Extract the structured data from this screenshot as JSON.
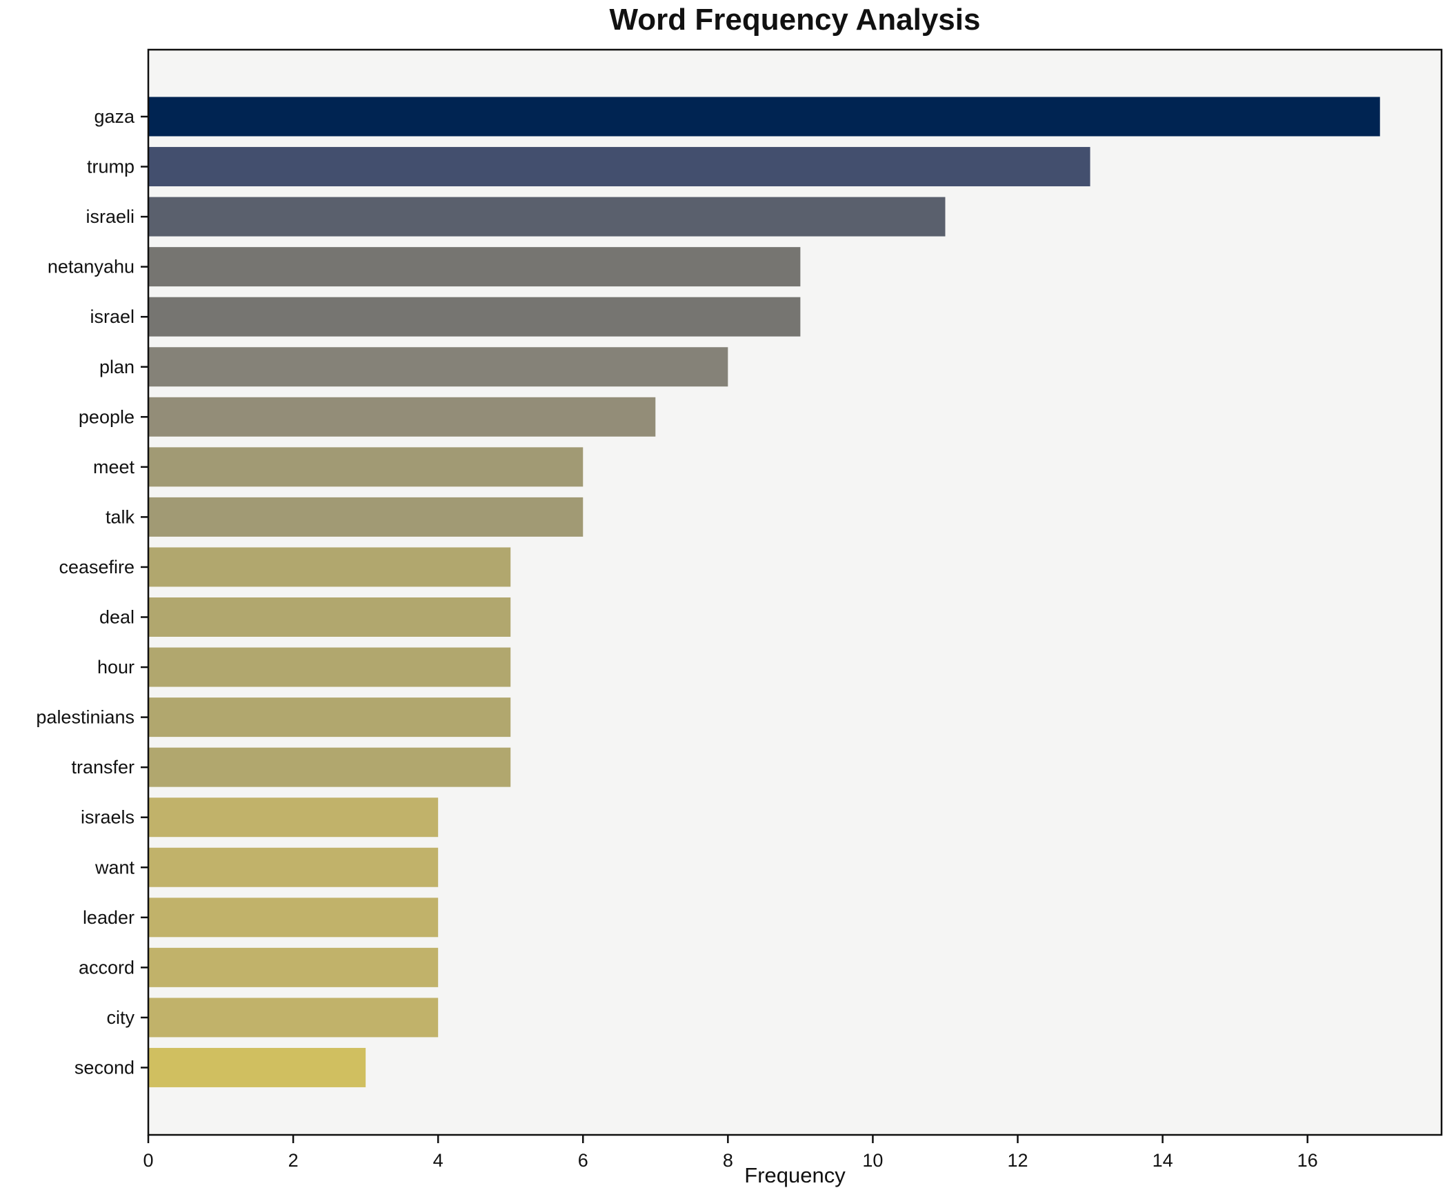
{
  "title": "Word Frequency Analysis",
  "chart_data": {
    "type": "bar",
    "orientation": "horizontal",
    "title": "Word Frequency Analysis",
    "xlabel": "Frequency",
    "ylabel": "",
    "categories": [
      "gaza",
      "trump",
      "israeli",
      "netanyahu",
      "israel",
      "plan",
      "people",
      "meet",
      "talk",
      "ceasefire",
      "deal",
      "hour",
      "palestinians",
      "transfer",
      "israels",
      "want",
      "leader",
      "accord",
      "city",
      "second"
    ],
    "values": [
      17,
      13,
      11,
      9,
      9,
      8,
      7,
      6,
      6,
      5,
      5,
      5,
      5,
      5,
      4,
      4,
      4,
      4,
      4,
      3
    ],
    "bar_colors": [
      "#002452",
      "#434f6e",
      "#5a606d",
      "#767571",
      "#767571",
      "#858278",
      "#938d78",
      "#a19a74",
      "#a19a74",
      "#b1a76e",
      "#b1a76e",
      "#b1a76e",
      "#b1a76e",
      "#b1a76e",
      "#c1b26a",
      "#c1b26a",
      "#c1b26a",
      "#c1b26a",
      "#c1b26a",
      "#d0bf60"
    ],
    "xlim": [
      0,
      17.85
    ],
    "xticks": [
      0,
      2,
      4,
      6,
      8,
      10,
      12,
      14,
      16
    ],
    "grid": false,
    "legend": null,
    "plot_bg": "#f5f5f4",
    "figure_bg": "#ffffff",
    "spine_color": "#0f0f0f",
    "tick_color": "#111111"
  }
}
